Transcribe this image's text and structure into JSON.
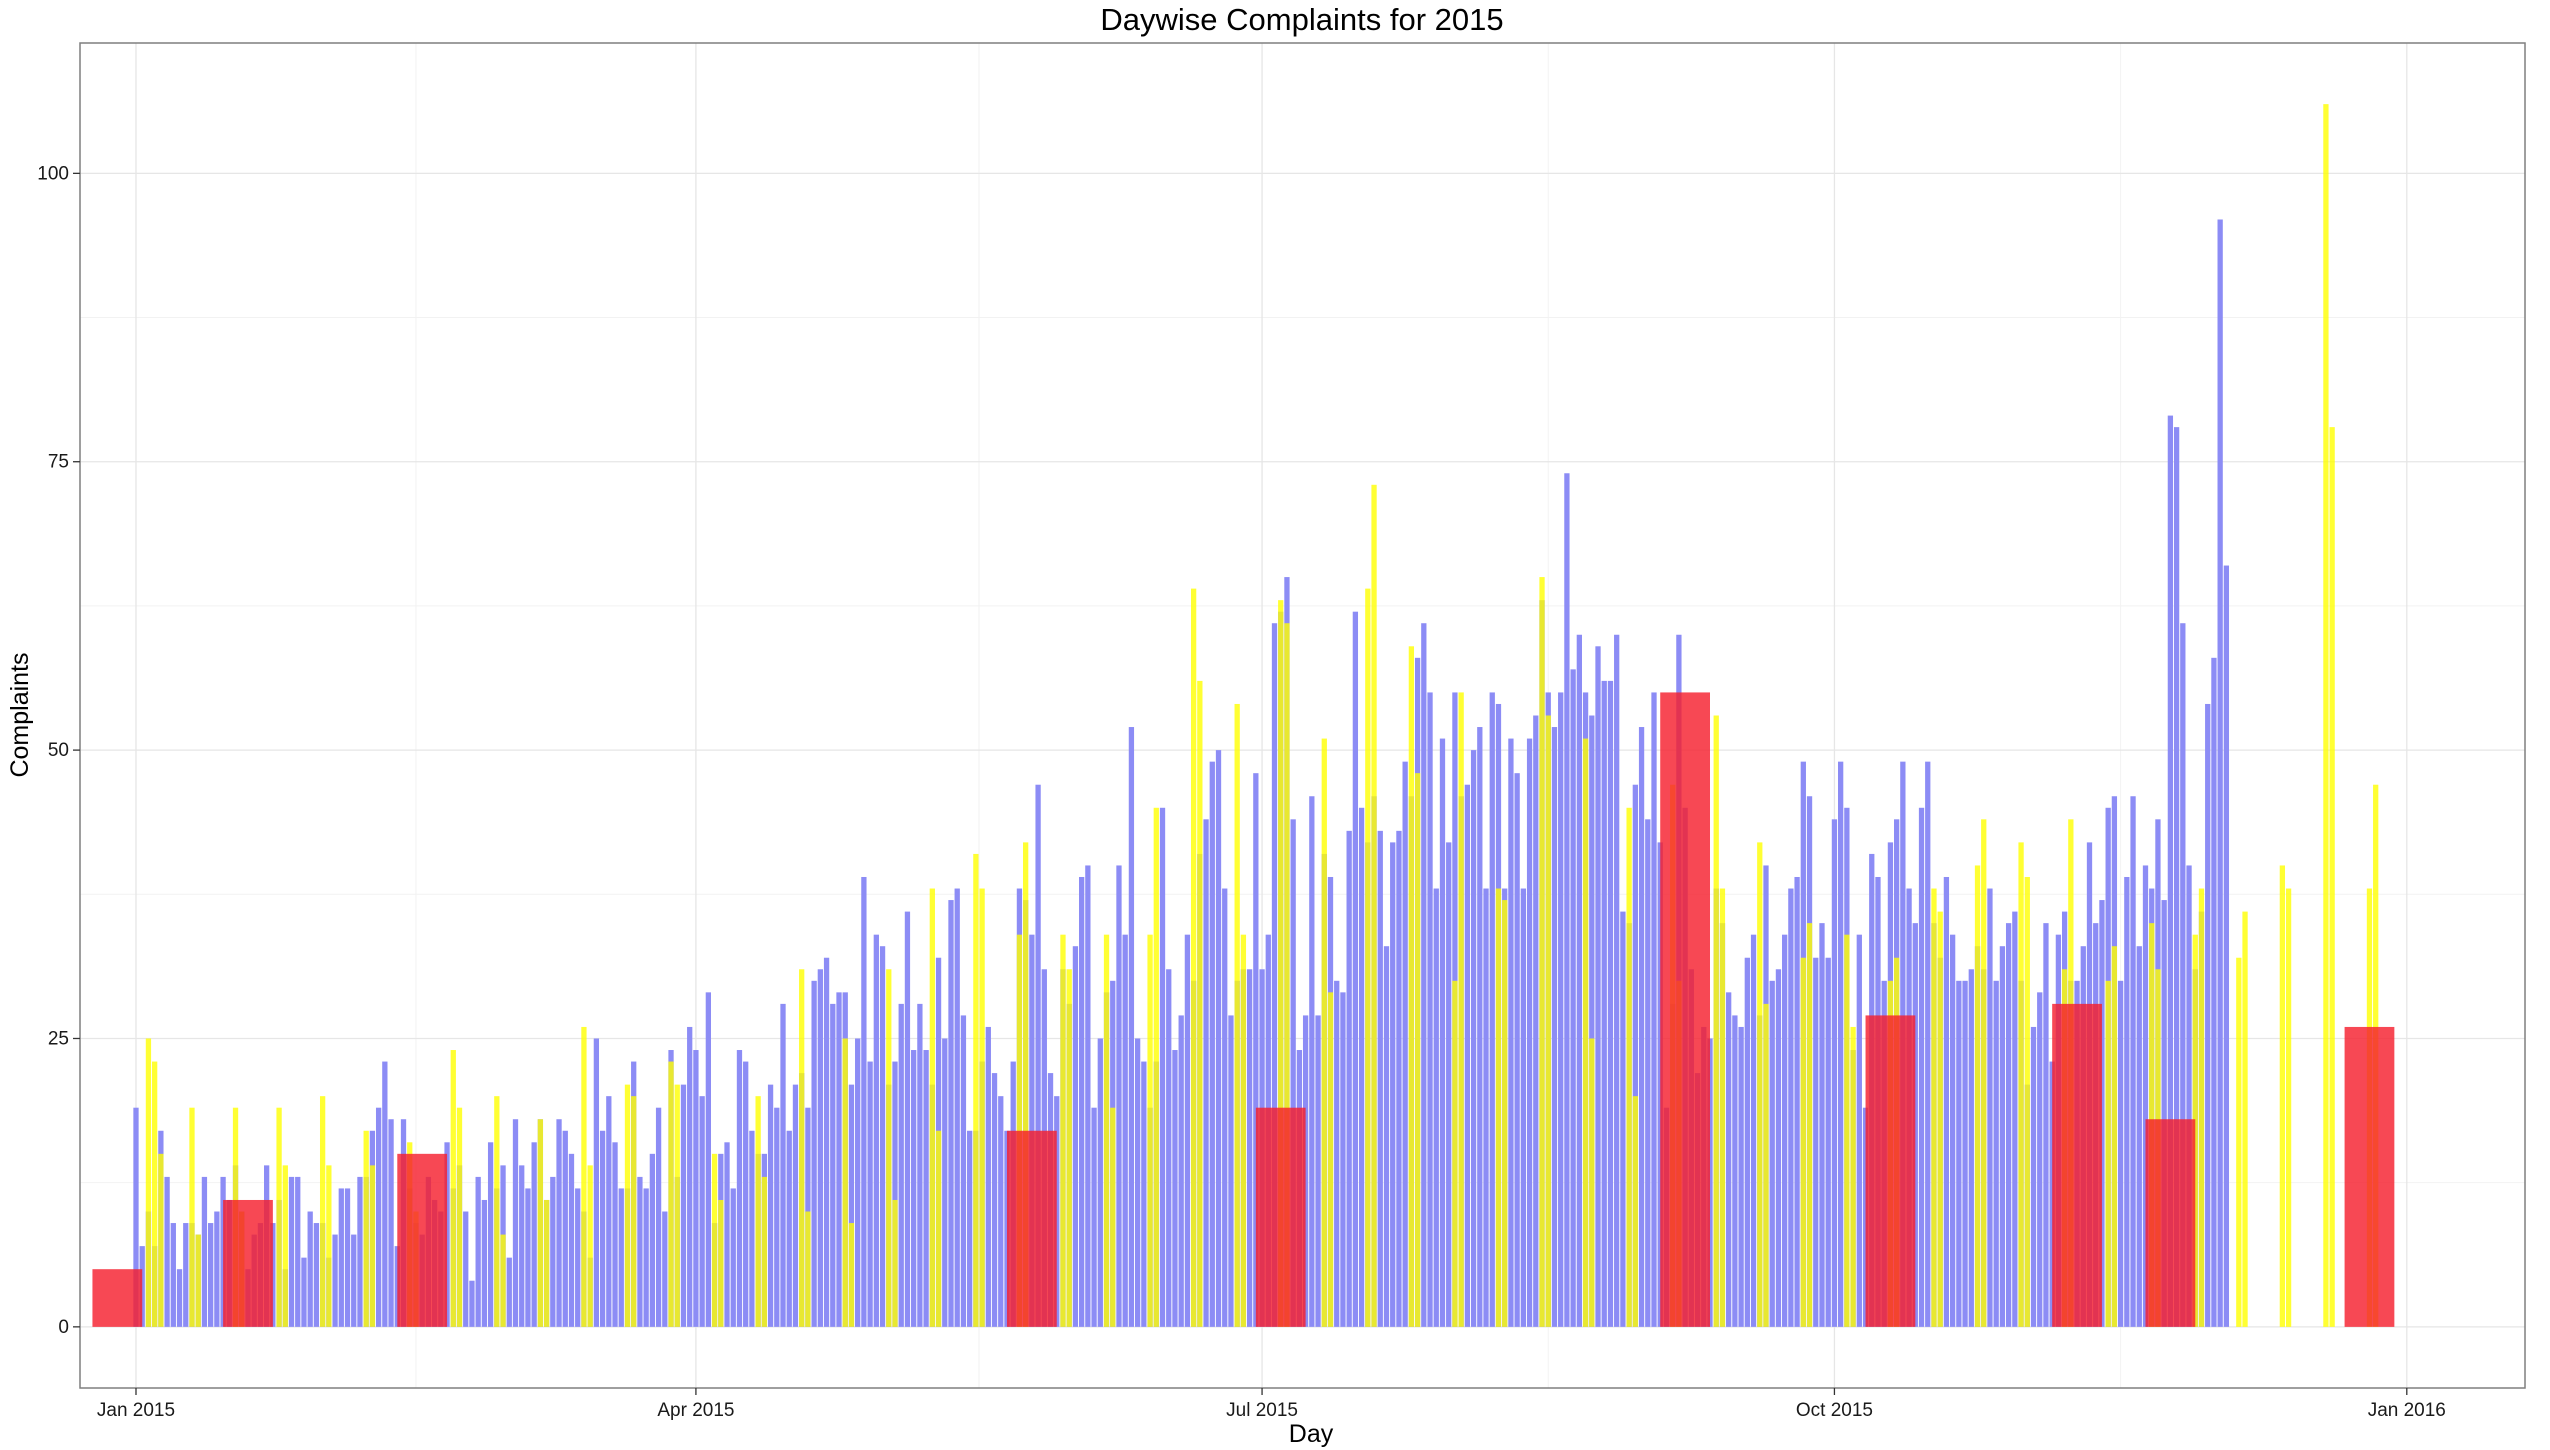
{
  "chart_data": {
    "type": "bar",
    "title": "Daywise Complaints for 2015",
    "xlabel": "Day",
    "ylabel": "Complaints",
    "x_range": [
      "2014-12-23",
      "2016-01-20"
    ],
    "ylim": [
      -5.3,
      111.3
    ],
    "y_ticks": [
      0,
      25,
      50,
      75,
      100
    ],
    "x_ticks": [
      {
        "date": "2015-01-01",
        "label": "Jan 2015"
      },
      {
        "date": "2015-04-01",
        "label": "Apr 2015"
      },
      {
        "date": "2015-07-01",
        "label": "Jul 2015"
      },
      {
        "date": "2015-10-01",
        "label": "Oct 2015"
      },
      {
        "date": "2016-01-01",
        "label": "Jan 2016"
      }
    ],
    "grid": true,
    "colors": {
      "weekday": "#8c8cf5",
      "weekend": "#ffff00",
      "holiday": "#f5202e",
      "background": "#ffffff",
      "grid": "#e6e6e6"
    },
    "series": [
      {
        "key": "weekday",
        "start": "2015-01-01",
        "values": [
          19,
          7,
          10,
          7,
          17,
          13,
          9,
          5,
          9,
          9,
          8,
          13,
          9,
          10,
          13,
          11,
          14,
          10,
          5,
          8,
          9,
          14,
          9,
          11,
          5,
          13,
          13,
          6,
          10,
          9,
          9,
          6,
          8,
          12,
          12,
          8,
          13,
          13,
          17,
          19,
          23,
          18,
          7,
          18,
          12,
          9,
          8,
          13,
          11,
          10,
          16,
          12,
          14,
          10,
          4,
          13,
          11,
          16,
          12,
          14,
          6,
          18,
          14,
          12,
          16,
          18,
          11,
          13,
          18,
          17,
          15,
          12,
          10,
          6,
          25,
          17,
          20,
          16,
          12,
          12,
          23,
          13,
          12,
          15,
          19,
          10,
          24,
          13,
          21,
          26,
          24,
          20,
          29,
          9,
          15,
          16,
          12,
          24,
          23,
          17,
          15,
          15,
          21,
          19,
          28,
          17,
          21,
          22,
          19,
          30,
          31,
          32,
          28,
          29,
          29,
          21,
          25,
          39,
          23,
          34,
          33,
          21,
          23,
          28,
          36,
          24,
          28,
          24,
          21,
          32,
          25,
          37,
          38,
          27,
          17,
          17,
          23,
          26,
          22,
          20,
          17,
          23,
          38,
          37,
          34,
          47,
          31,
          22,
          20,
          31,
          28,
          33,
          39,
          40,
          19,
          25,
          29,
          30,
          40,
          34,
          52,
          25,
          23,
          19,
          23,
          45,
          31,
          24,
          27,
          34,
          30,
          41,
          44,
          49,
          50,
          38,
          27,
          30,
          31,
          31,
          48,
          31,
          34,
          61,
          62,
          65,
          44,
          24,
          27,
          46,
          27,
          41,
          39,
          30,
          29,
          43,
          62,
          45,
          42,
          46,
          43,
          33,
          42,
          43,
          49,
          46,
          58,
          61,
          55,
          38,
          51,
          42,
          55,
          46,
          47,
          50,
          52,
          38,
          55,
          54,
          38,
          51,
          48,
          38,
          51,
          53,
          63,
          55,
          52,
          55,
          74,
          57,
          60,
          55,
          53,
          59,
          56,
          56,
          60,
          36,
          35,
          47,
          52,
          44,
          55,
          42,
          19,
          28,
          60,
          45,
          31,
          22,
          26,
          25,
          38,
          35,
          29,
          27,
          26,
          32,
          34,
          27,
          40,
          30,
          31,
          34,
          38,
          39,
          49,
          46,
          32,
          35,
          32,
          44,
          49,
          45,
          24,
          34,
          19,
          41,
          39,
          30,
          42,
          44,
          49,
          38,
          35,
          45,
          49,
          35,
          32,
          39,
          34,
          30,
          30,
          31,
          33,
          31,
          38,
          30,
          33,
          35,
          36,
          30,
          21,
          26,
          29,
          35,
          23,
          34,
          36,
          30,
          30,
          33,
          42,
          35,
          37,
          45,
          46,
          30,
          39,
          46,
          33,
          40,
          38,
          44,
          37,
          79,
          78,
          61,
          40,
          31,
          36,
          54,
          58,
          96,
          66
        ]
      },
      {
        "key": "weekend",
        "days": [
          "2015-01-03",
          "2015-01-04",
          "2015-01-05",
          "2015-01-10",
          "2015-01-11",
          "2015-01-17",
          "2015-01-18",
          "2015-01-24",
          "2015-01-25",
          "2015-01-31",
          "2015-02-01",
          "2015-02-07",
          "2015-02-08",
          "2015-02-14",
          "2015-02-15",
          "2015-02-21",
          "2015-02-22",
          "2015-02-28",
          "2015-03-01",
          "2015-03-07",
          "2015-03-08",
          "2015-03-14",
          "2015-03-15",
          "2015-03-21",
          "2015-03-22",
          "2015-03-28",
          "2015-03-29",
          "2015-04-04",
          "2015-04-05",
          "2015-04-11",
          "2015-04-12",
          "2015-04-18",
          "2015-04-19",
          "2015-04-25",
          "2015-04-26",
          "2015-05-02",
          "2015-05-03",
          "2015-05-09",
          "2015-05-10",
          "2015-05-16",
          "2015-05-17",
          "2015-05-23",
          "2015-05-24",
          "2015-05-30",
          "2015-05-31",
          "2015-06-06",
          "2015-06-07",
          "2015-06-13",
          "2015-06-14",
          "2015-06-20",
          "2015-06-21",
          "2015-06-27",
          "2015-06-28",
          "2015-07-04",
          "2015-07-05",
          "2015-07-11",
          "2015-07-12",
          "2015-07-18",
          "2015-07-19",
          "2015-07-25",
          "2015-07-26",
          "2015-08-01",
          "2015-08-02",
          "2015-08-08",
          "2015-08-09",
          "2015-08-15",
          "2015-08-16",
          "2015-08-22",
          "2015-08-23",
          "2015-08-29",
          "2015-08-30",
          "2015-09-05",
          "2015-09-06",
          "2015-09-12",
          "2015-09-13",
          "2015-09-19",
          "2015-09-20",
          "2015-09-26",
          "2015-09-27",
          "2015-10-03",
          "2015-10-04",
          "2015-10-10",
          "2015-10-11",
          "2015-10-17",
          "2015-10-18",
          "2015-10-24",
          "2015-10-25",
          "2015-10-31",
          "2015-11-01",
          "2015-11-07",
          "2015-11-08",
          "2015-11-14",
          "2015-11-15",
          "2015-11-21",
          "2015-11-22",
          "2015-11-28",
          "2015-11-29",
          "2015-12-05",
          "2015-12-06",
          "2015-12-12",
          "2015-12-13",
          "2015-12-19",
          "2015-12-20",
          "2015-12-26",
          "2015-12-27"
        ],
        "values": [
          25,
          23,
          15,
          19,
          8,
          19,
          10,
          19,
          14,
          20,
          14,
          17,
          14,
          16,
          10,
          24,
          19,
          20,
          8,
          18,
          11,
          26,
          14,
          21,
          20,
          23,
          21,
          15,
          11,
          20,
          13,
          31,
          10,
          25,
          9,
          31,
          11,
          38,
          17,
          41,
          38,
          34,
          42,
          34,
          31,
          34,
          19,
          34,
          45,
          64,
          56,
          54,
          34,
          63,
          61,
          51,
          29,
          64,
          73,
          59,
          48,
          30,
          55,
          38,
          37,
          65,
          53,
          51,
          25,
          45,
          20,
          47,
          30,
          53,
          38,
          42,
          28,
          32,
          35,
          34,
          26,
          30,
          32,
          38,
          36,
          40,
          44,
          42,
          39,
          31,
          44,
          30,
          33,
          35,
          31,
          34,
          38,
          32,
          36,
          40,
          38,
          106,
          78,
          38,
          47
        ]
      },
      {
        "key": "holiday",
        "bars": [
          {
            "start": "2014-12-25",
            "end": "2015-01-02",
            "value": 5
          },
          {
            "start": "2015-01-15",
            "end": "2015-01-23",
            "value": 11
          },
          {
            "start": "2015-02-12",
            "end": "2015-02-20",
            "value": 15
          },
          {
            "start": "2015-05-21",
            "end": "2015-05-29",
            "value": 17
          },
          {
            "start": "2015-06-30",
            "end": "2015-07-08",
            "value": 19
          },
          {
            "start": "2015-09-03",
            "end": "2015-09-11",
            "value": 55
          },
          {
            "start": "2015-10-06",
            "end": "2015-10-14",
            "value": 27
          },
          {
            "start": "2015-11-05",
            "end": "2015-11-13",
            "value": 28
          },
          {
            "start": "2015-11-20",
            "end": "2015-11-28",
            "value": 18
          },
          {
            "start": "2015-12-22",
            "end": "2015-12-30",
            "value": 26
          }
        ]
      }
    ]
  }
}
